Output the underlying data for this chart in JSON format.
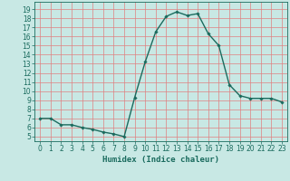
{
  "x": [
    0,
    1,
    2,
    3,
    4,
    5,
    6,
    7,
    8,
    9,
    10,
    11,
    12,
    13,
    14,
    15,
    16,
    17,
    18,
    19,
    20,
    21,
    22,
    23
  ],
  "y": [
    7.0,
    7.0,
    6.3,
    6.3,
    6.0,
    5.8,
    5.5,
    5.3,
    5.0,
    9.3,
    13.2,
    16.5,
    18.2,
    18.7,
    18.3,
    18.5,
    16.3,
    15.0,
    10.7,
    9.5,
    9.2,
    9.2,
    9.2,
    8.8
  ],
  "line_color": "#1a6b5e",
  "marker": "D",
  "marker_size": 1.8,
  "bg_color": "#c8e8e4",
  "grid_color": "#e08080",
  "xlabel": "Humidex (Indice chaleur)",
  "xlabel_fontsize": 6.5,
  "ylabel_ticks": [
    5,
    6,
    7,
    8,
    9,
    10,
    11,
    12,
    13,
    14,
    15,
    16,
    17,
    18,
    19
  ],
  "xlim": [
    -0.5,
    23.5
  ],
  "ylim": [
    4.5,
    19.8
  ],
  "tick_fontsize": 5.5,
  "line_width": 1.0
}
